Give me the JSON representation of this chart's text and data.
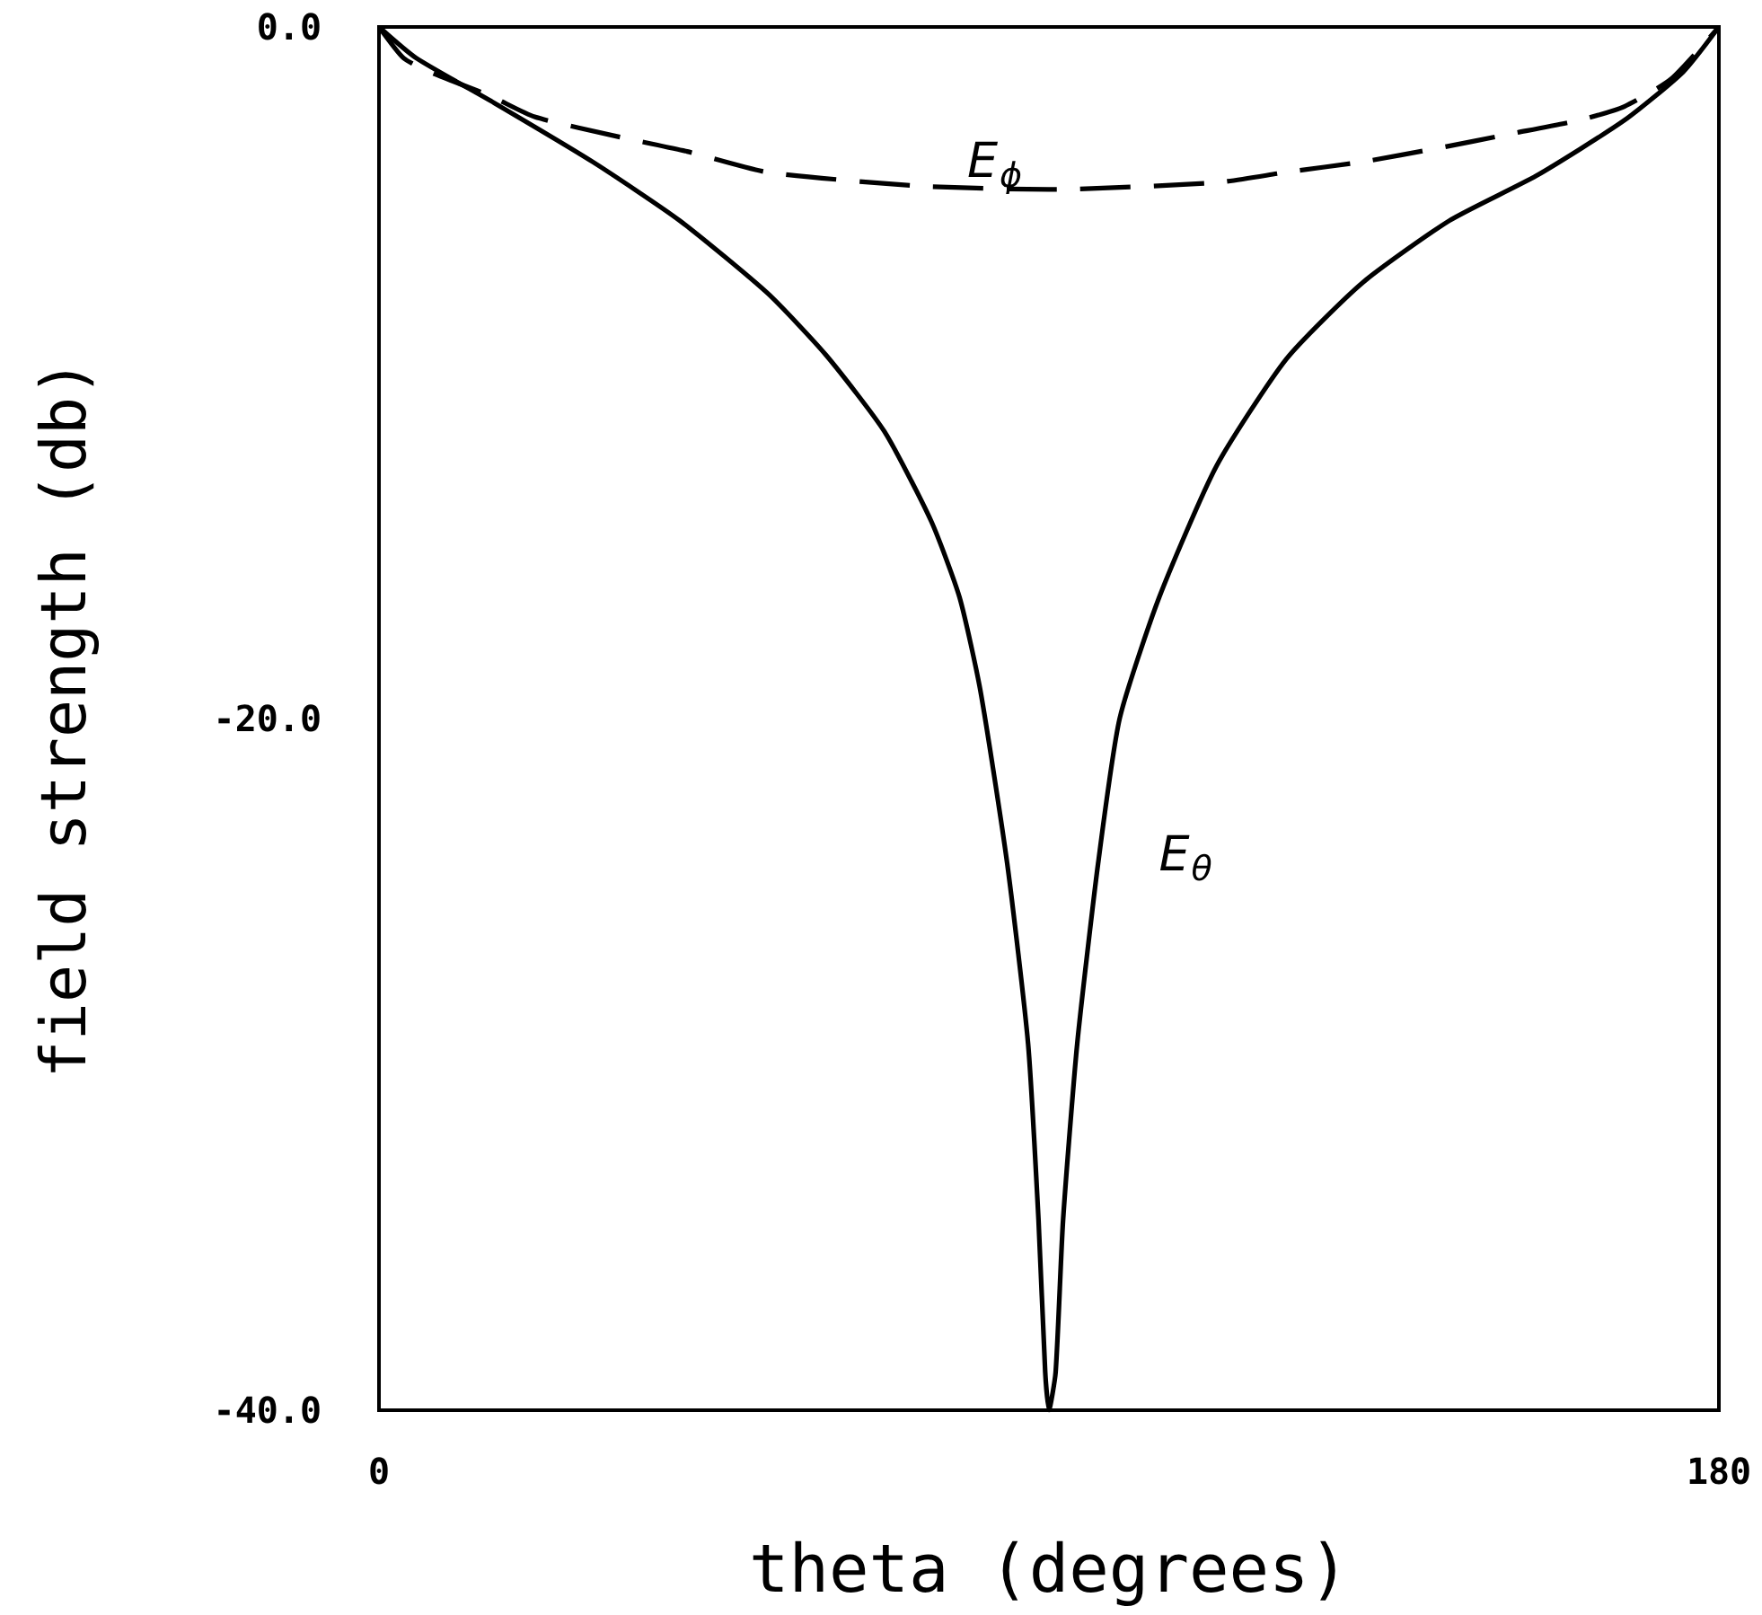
{
  "chart_data": {
    "type": "line",
    "xlabel": "theta (degrees)",
    "ylabel": "field strength (db)",
    "xlim": [
      0,
      180
    ],
    "xticks": [
      0,
      180
    ],
    "ylim": [
      -40,
      0
    ],
    "yticks": [
      {
        "value": 0,
        "label": "0.0"
      },
      {
        "value": -20,
        "label": "-20.0"
      },
      {
        "value": -40,
        "label": "-40.0"
      }
    ],
    "series": [
      {
        "name": "E$_{θ}$",
        "color": "#000000",
        "line_style": "solid",
        "x": [
          0,
          5,
          15.5,
          28.7,
          40.4,
          52.2,
          60.1,
          67.9,
          74.2,
          78,
          80.8,
          84.4,
          87.2,
          88.6,
          89.5,
          90,
          90.9,
          91.9,
          93.8,
          96.6,
          99.5,
          104.8,
          112.5,
          121.9,
          132.1,
          143.8,
          155.5,
          167.3,
          175.2,
          180
        ],
        "values": [
          0,
          -0.9,
          -2.2,
          -3.9,
          -5.6,
          -7.7,
          -9.5,
          -11.7,
          -14.3,
          -16.5,
          -19.2,
          -24.2,
          -29.4,
          -34.5,
          -38.9,
          -40,
          -38.9,
          -34.5,
          -29.4,
          -24.2,
          -20,
          -16.5,
          -12.7,
          -9.6,
          -7.4,
          -5.6,
          -4.3,
          -2.7,
          -1.3,
          0
        ]
      },
      {
        "name": "E$_{ϕ}$",
        "color": "#000000",
        "line_style": "dashed",
        "x": [
          0,
          3.3,
          6.8,
          15,
          20.9,
          32.7,
          41.4,
          52.2,
          72.6,
          90,
          112.5,
          121.9,
          132.1,
          142.4,
          151.8,
          161.2,
          167.3,
          173.6,
          180
        ],
        "values": [
          0,
          -0.9,
          -1.3,
          -2,
          -2.6,
          -3.2,
          -3.6,
          -4.2,
          -4.6,
          -4.7,
          -4.5,
          -4.2,
          -3.9,
          -3.5,
          -3.1,
          -2.7,
          -2.3,
          -1.5,
          0
        ]
      }
    ]
  }
}
